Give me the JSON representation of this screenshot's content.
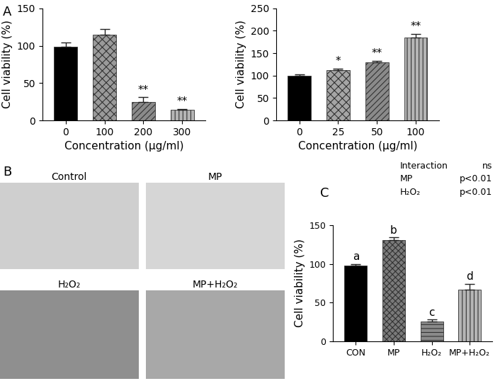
{
  "chart_data": [
    {
      "type": "bar",
      "panel": "A",
      "categories": [
        "0",
        "100",
        "200",
        "300"
      ],
      "values": [
        99,
        115,
        25,
        14
      ],
      "errors": [
        5,
        7,
        6,
        1.5
      ],
      "annotations": [
        null,
        null,
        "**",
        "**"
      ],
      "colors": [
        "#000000",
        "#9a9a9a",
        "#8a8a8a",
        "#b5b5b5"
      ],
      "xlabel": "Concentration (μg/ml)",
      "ylabel": "Cell viability (%)",
      "ylim": [
        0,
        150
      ],
      "yticks": [
        0,
        50,
        100,
        150
      ]
    },
    {
      "type": "bar",
      "categories": [
        "0",
        "25",
        "50",
        "100"
      ],
      "values": [
        100,
        113,
        130,
        185
      ],
      "errors": [
        2,
        3,
        3,
        8
      ],
      "annotations": [
        null,
        "*",
        "**",
        "**"
      ],
      "colors": [
        "#000000",
        "#a5a5a5",
        "#8a8a8a",
        "#b5b5b5"
      ],
      "xlabel": "Concentration (μg/ml)",
      "ylabel": "Cell viability (%)",
      "ylim": [
        0,
        250
      ],
      "yticks": [
        0,
        50,
        100,
        150,
        200,
        250
      ]
    },
    {
      "type": "bar",
      "panel": "C",
      "categories": [
        "CON",
        "MP",
        "H₂O₂",
        "MP+H₂O₂"
      ],
      "values": [
        98,
        131,
        26,
        67
      ],
      "errors": [
        2,
        3,
        2,
        7
      ],
      "annotations": [
        "a",
        "b",
        "c",
        "d"
      ],
      "colors": [
        "#000000",
        "#7a7a7a",
        "#8a8a8a",
        "#b5b5b5"
      ],
      "ylabel": "Cell viability (%)",
      "ylim": [
        0,
        150
      ],
      "yticks": [
        0,
        50,
        100,
        150
      ],
      "stats": [
        [
          "Interaction",
          "ns"
        ],
        [
          "MP",
          "p<0.01"
        ],
        [
          "H₂O₂",
          "p<0.01"
        ]
      ]
    }
  ],
  "images": {
    "panel": "B",
    "titles": [
      "Control",
      "MP",
      "H₂O₂",
      "MP+H₂O₂"
    ]
  }
}
